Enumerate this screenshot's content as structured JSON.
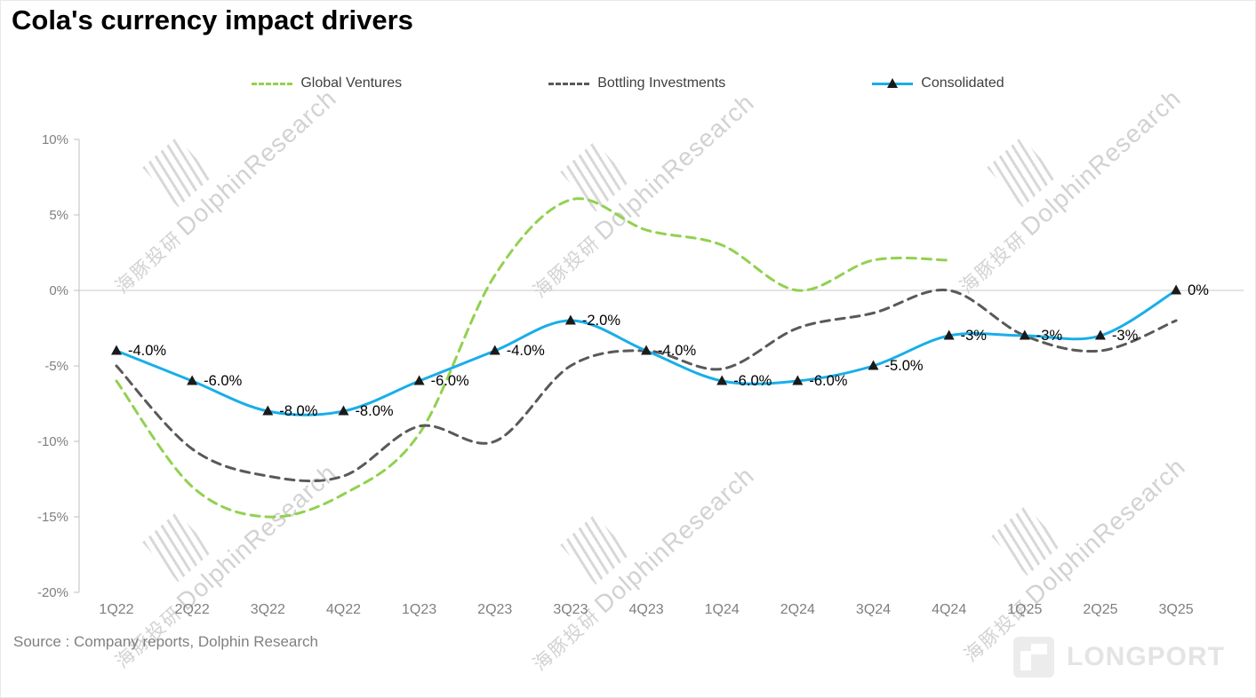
{
  "title": "Cola's currency impact drivers",
  "source": "Source : Company reports, Dolphin Research",
  "brand": "LONGPORT",
  "watermark": {
    "cn": "海豚投研",
    "en": "DolphinResearch"
  },
  "chart_data": {
    "type": "line",
    "title": "Cola's currency impact drivers",
    "categories": [
      "1Q22",
      "2Q22",
      "3Q22",
      "4Q22",
      "1Q23",
      "2Q23",
      "3Q23",
      "4Q23",
      "1Q24",
      "2Q24",
      "3Q24",
      "4Q24",
      "1Q25",
      "2Q25",
      "3Q25"
    ],
    "series": [
      {
        "name": "Global Ventures",
        "color": "#92d14f",
        "style": "dashed",
        "values": [
          -6,
          -13,
          -15,
          -13.5,
          -9.5,
          1,
          6,
          4,
          3,
          0,
          2,
          2,
          null,
          null,
          null
        ]
      },
      {
        "name": "Bottling Investments",
        "color": "#595959",
        "style": "dashed",
        "values": [
          -5,
          -10.5,
          -12.3,
          -12.3,
          -9,
          -10,
          -5,
          -4,
          -5.2,
          -2.5,
          -1.5,
          0,
          -3,
          -4,
          -2
        ]
      },
      {
        "name": "Consolidated",
        "color": "#19aee8",
        "style": "solid",
        "marker": "triangle",
        "marker_color": "#1a1a1a",
        "values": [
          -4,
          -6,
          -8,
          -8,
          -6,
          -4,
          -2,
          -4,
          -6,
          -6,
          -5,
          -3,
          -3,
          -3,
          0
        ],
        "labels": [
          "-4.0%",
          "-6.0%",
          "-8.0%",
          "-8.0%",
          "-6.0%",
          "-4.0%",
          "-2.0%",
          "-4.0%",
          "-6.0%",
          "-6.0%",
          "-5.0%",
          "-3%",
          "-3%",
          "-3%",
          "0%"
        ]
      }
    ],
    "ylim": [
      -20,
      10
    ],
    "yticks": [
      "10%",
      "5%",
      "0%",
      "-5%",
      "-10%",
      "-15%",
      "-20%"
    ],
    "ytick_values": [
      10,
      5,
      0,
      -5,
      -10,
      -15,
      -20
    ],
    "grid": false,
    "zero_line": true,
    "legend_position": "top"
  }
}
